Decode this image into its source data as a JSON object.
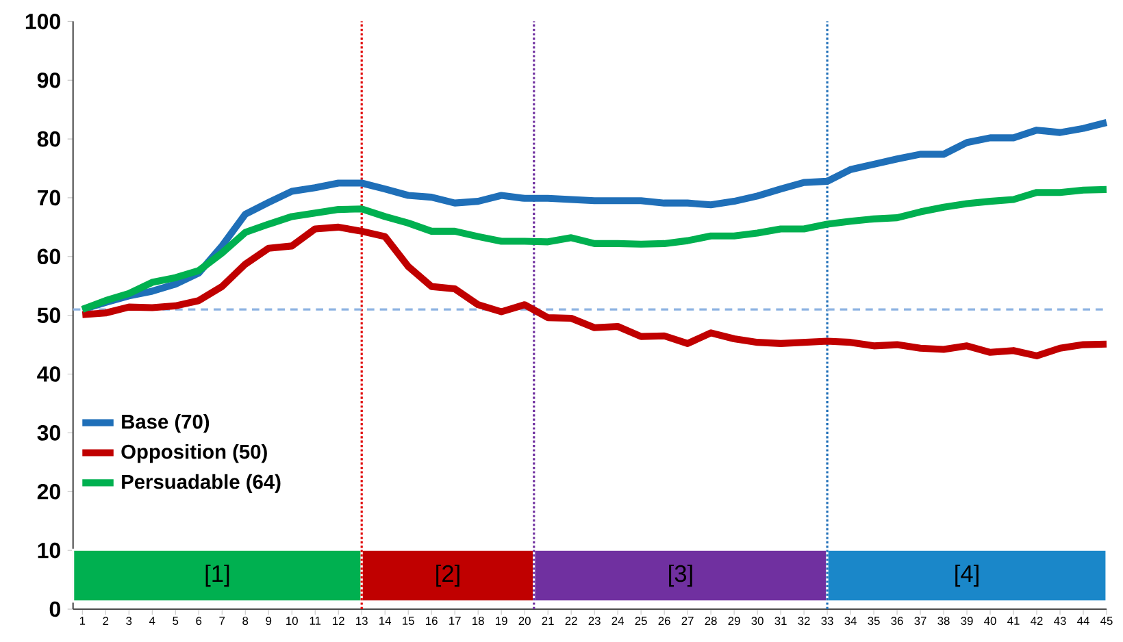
{
  "chart_data": {
    "type": "line",
    "x": [
      1,
      2,
      3,
      4,
      5,
      6,
      7,
      8,
      9,
      10,
      11,
      12,
      13,
      14,
      15,
      16,
      17,
      18,
      19,
      20,
      21,
      22,
      23,
      24,
      25,
      26,
      27,
      28,
      29,
      30,
      31,
      32,
      33,
      34,
      35,
      36,
      37,
      38,
      39,
      40,
      41,
      42,
      43,
      44,
      45
    ],
    "series": [
      {
        "name": "Base (70)",
        "color": "#1f6fb8",
        "values": [
          51.0,
          52.2,
          53.3,
          54.1,
          55.3,
          57.2,
          61.8,
          67.2,
          69.2,
          71.1,
          71.7,
          72.5,
          72.5,
          71.5,
          70.4,
          70.1,
          69.1,
          69.4,
          70.4,
          69.9,
          69.9,
          69.7,
          69.5,
          69.5,
          69.5,
          69.1,
          69.1,
          68.8,
          69.4,
          70.3,
          71.5,
          72.6,
          72.8,
          74.8,
          75.7,
          76.6,
          77.4,
          77.4,
          79.4,
          80.2,
          80.2,
          81.5,
          81.1,
          81.8,
          82.8
        ]
      },
      {
        "name": "Opposition (50)",
        "color": "#c00000",
        "values": [
          50.1,
          50.4,
          51.4,
          51.3,
          51.6,
          52.5,
          54.9,
          58.7,
          61.4,
          61.8,
          64.7,
          65.0,
          64.3,
          63.4,
          58.3,
          54.9,
          54.5,
          51.8,
          50.6,
          51.8,
          49.6,
          49.5,
          47.9,
          48.1,
          46.4,
          46.5,
          45.2,
          47.0,
          46.0,
          45.4,
          45.2,
          45.4,
          45.6,
          45.4,
          44.8,
          45.0,
          44.4,
          44.2,
          44.8,
          43.7,
          44.0,
          43.1,
          44.4,
          45.0,
          45.1
        ]
      },
      {
        "name": "Persuadable (64)",
        "color": "#00b050",
        "values": [
          51.0,
          52.5,
          53.7,
          55.6,
          56.4,
          57.6,
          60.6,
          64.1,
          65.5,
          66.8,
          67.4,
          68.0,
          68.1,
          66.8,
          65.7,
          64.3,
          64.3,
          63.4,
          62.6,
          62.6,
          62.5,
          63.2,
          62.2,
          62.2,
          62.1,
          62.2,
          62.7,
          63.5,
          63.5,
          64.0,
          64.7,
          64.7,
          65.5,
          66.0,
          66.4,
          66.6,
          67.6,
          68.4,
          69.0,
          69.4,
          69.7,
          70.9,
          70.9,
          71.3,
          71.4
        ]
      }
    ],
    "xlim": [
      0.6,
      45
    ],
    "xticks": [
      1,
      2,
      3,
      4,
      5,
      6,
      7,
      8,
      9,
      10,
      11,
      12,
      13,
      14,
      15,
      16,
      17,
      18,
      19,
      20,
      21,
      22,
      23,
      24,
      25,
      26,
      27,
      28,
      29,
      30,
      31,
      32,
      33,
      34,
      35,
      36,
      37,
      38,
      39,
      40,
      41,
      42,
      43,
      44,
      45
    ],
    "ylim": [
      0,
      100
    ],
    "yticks": [
      0,
      10,
      20,
      30,
      40,
      50,
      60,
      70,
      80,
      90,
      100
    ],
    "ref_lines": [
      {
        "axis": "x",
        "value": 13,
        "color": "#e00000",
        "line_style": "dotted"
      },
      {
        "axis": "x",
        "value": 20.4,
        "color": "#7030a0",
        "line_style": "dotted"
      },
      {
        "axis": "x",
        "value": 33,
        "color": "#1f6fb8",
        "line_style": "dotted"
      },
      {
        "axis": "y",
        "value": 51,
        "color": "#8db3e2",
        "line_style": "dashed"
      }
    ],
    "bands": [
      {
        "axis": "x",
        "from": 0.6,
        "to": 13,
        "label": "[1]",
        "color": "#00b050"
      },
      {
        "axis": "x",
        "from": 13,
        "to": 20.4,
        "label": "[2]",
        "color": "#c00000"
      },
      {
        "axis": "x",
        "from": 20.4,
        "to": 33,
        "label": "[3]",
        "color": "#7030a0"
      },
      {
        "axis": "x",
        "from": 33,
        "to": 45,
        "label": "[4]",
        "color": "#1a87c9"
      }
    ],
    "legend": "left",
    "grid": false,
    "marker": "none",
    "line_style": "solid"
  }
}
